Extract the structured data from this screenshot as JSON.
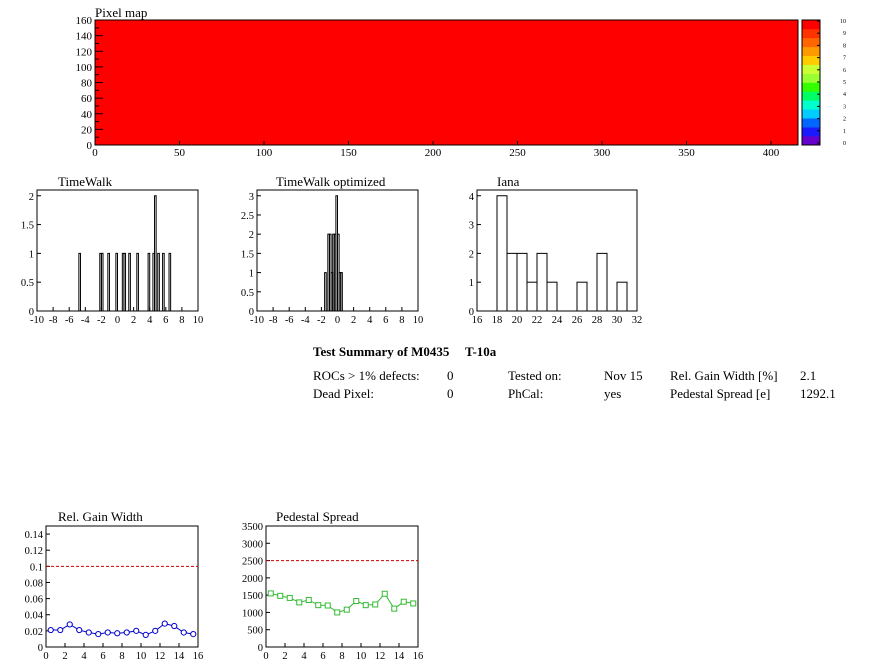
{
  "pixel_map": {
    "title": "Pixel map",
    "x_ticks": [
      "0",
      "50",
      "100",
      "150",
      "200",
      "250",
      "300",
      "350",
      "400"
    ],
    "y_ticks": [
      "0",
      "20",
      "40",
      "60",
      "80",
      "100",
      "120",
      "140",
      "160"
    ],
    "xlim": [
      0,
      416
    ],
    "ylim": [
      0,
      160
    ],
    "fill_color": "#ff0000",
    "palette": [
      "#6600cc",
      "#1a1aff",
      "#0066ff",
      "#00ccff",
      "#00ffcc",
      "#00ff66",
      "#33ff00",
      "#99ff33",
      "#ccff33",
      "#ffcc00",
      "#ff9900",
      "#ff6600",
      "#ff3300",
      "#ff0000"
    ],
    "palette_labels": [
      "0",
      "1",
      "2",
      "3",
      "4",
      "5",
      "6",
      "7",
      "8",
      "9",
      "10"
    ]
  },
  "chart_data": [
    {
      "type": "bar",
      "title": "TimeWalk",
      "x_ticks": [
        "-10",
        "-8",
        "-6",
        "-4",
        "-2",
        "0",
        "2",
        "4",
        "6",
        "8",
        "10"
      ],
      "y_ticks": [
        "0",
        "0.5",
        "1",
        "1.5",
        "2"
      ],
      "xlim": [
        -10,
        10
      ],
      "ylim": [
        0,
        2.1
      ],
      "bin_width": 0.2,
      "bins": [
        [
          -4.8,
          1
        ],
        [
          -2.2,
          1
        ],
        [
          -2.0,
          1
        ],
        [
          -1.2,
          1
        ],
        [
          -0.2,
          1
        ],
        [
          0.6,
          1
        ],
        [
          0.8,
          1
        ],
        [
          1.4,
          1
        ],
        [
          2.4,
          1
        ],
        [
          3.8,
          1
        ],
        [
          4.4,
          1
        ],
        [
          4.6,
          2
        ],
        [
          5.0,
          1
        ],
        [
          5.6,
          1
        ],
        [
          6.4,
          1
        ]
      ]
    },
    {
      "type": "bar",
      "title": "TimeWalk optimized",
      "x_ticks": [
        "-10",
        "-8",
        "-6",
        "-4",
        "-2",
        "0",
        "2",
        "4",
        "6",
        "8",
        "10"
      ],
      "y_ticks": [
        "0",
        "0.5",
        "1",
        "1.5",
        "2",
        "2.5",
        "3"
      ],
      "xlim": [
        -10,
        10
      ],
      "ylim": [
        0,
        3.15
      ],
      "bin_width": 0.2,
      "bins": [
        [
          -1.6,
          1
        ],
        [
          -1.2,
          2
        ],
        [
          -1.0,
          2
        ],
        [
          -0.8,
          1
        ],
        [
          -0.6,
          2
        ],
        [
          -0.4,
          2
        ],
        [
          -0.2,
          3
        ],
        [
          0,
          2
        ],
        [
          0.2,
          1
        ],
        [
          0.4,
          1
        ]
      ]
    },
    {
      "type": "bar",
      "title": "Iana",
      "x_ticks": [
        "16",
        "18",
        "20",
        "22",
        "24",
        "26",
        "28",
        "30",
        "32"
      ],
      "y_ticks": [
        "0",
        "1",
        "2",
        "3",
        "4"
      ],
      "xlim": [
        16,
        32
      ],
      "ylim": [
        0,
        4.2
      ],
      "bin_width": 1,
      "bins": [
        [
          18,
          4
        ],
        [
          19,
          2
        ],
        [
          20,
          2
        ],
        [
          21,
          1
        ],
        [
          22,
          2
        ],
        [
          23,
          1
        ],
        [
          26,
          1
        ],
        [
          28,
          2
        ],
        [
          30,
          1
        ]
      ]
    },
    {
      "type": "line",
      "title": "Rel. Gain Width",
      "x_ticks": [
        "0",
        "2",
        "4",
        "6",
        "8",
        "10",
        "12",
        "14",
        "16"
      ],
      "y_ticks": [
        "0",
        "0.02",
        "0.04",
        "0.06",
        "0.08",
        "0.1",
        "0.12",
        "0.14"
      ],
      "xlim": [
        0,
        16
      ],
      "ylim": [
        0,
        0.15
      ],
      "threshold": 0.1,
      "color": "#0000cc",
      "threshold_color": "#cc0000",
      "x": [
        0.5,
        1.5,
        2.5,
        3.5,
        4.5,
        5.5,
        6.5,
        7.5,
        8.5,
        9.5,
        10.5,
        11.5,
        12.5,
        13.5,
        14.5,
        15.5
      ],
      "y": [
        0.021,
        0.021,
        0.028,
        0.021,
        0.018,
        0.016,
        0.018,
        0.017,
        0.018,
        0.02,
        0.015,
        0.02,
        0.029,
        0.026,
        0.018,
        0.016
      ]
    },
    {
      "type": "line",
      "title": "Pedestal Spread",
      "x_ticks": [
        "0",
        "2",
        "4",
        "6",
        "8",
        "10",
        "12",
        "14",
        "16"
      ],
      "y_ticks": [
        "0",
        "500",
        "1000",
        "1500",
        "2000",
        "2500",
        "3000",
        "3500"
      ],
      "xlim": [
        0,
        16
      ],
      "ylim": [
        0,
        3500
      ],
      "threshold": 2500,
      "color": "#33bb33",
      "threshold_color": "#cc0000",
      "x": [
        0.5,
        1.5,
        2.5,
        3.5,
        4.5,
        5.5,
        6.5,
        7.5,
        8.5,
        9.5,
        10.5,
        11.5,
        12.5,
        13.5,
        14.5,
        15.5
      ],
      "y": [
        1550,
        1480,
        1420,
        1290,
        1360,
        1210,
        1200,
        1000,
        1080,
        1330,
        1210,
        1230,
        1540,
        1110,
        1310,
        1260
      ]
    }
  ],
  "summary": {
    "title": "Test Summary of M0435",
    "test": "T-10a",
    "rocs_label": "ROCs > 1% defects:",
    "rocs_value": "0",
    "dead_label": "Dead Pixel:",
    "dead_value": "0",
    "tested_label": "Tested on:",
    "tested_value": "Nov 15",
    "phcal_label": "PhCal:",
    "phcal_value": "yes",
    "gain_label": "Rel. Gain Width [%]",
    "gain_value": "2.1",
    "ped_label": "Pedestal Spread [e]",
    "ped_value": "1292.1"
  }
}
